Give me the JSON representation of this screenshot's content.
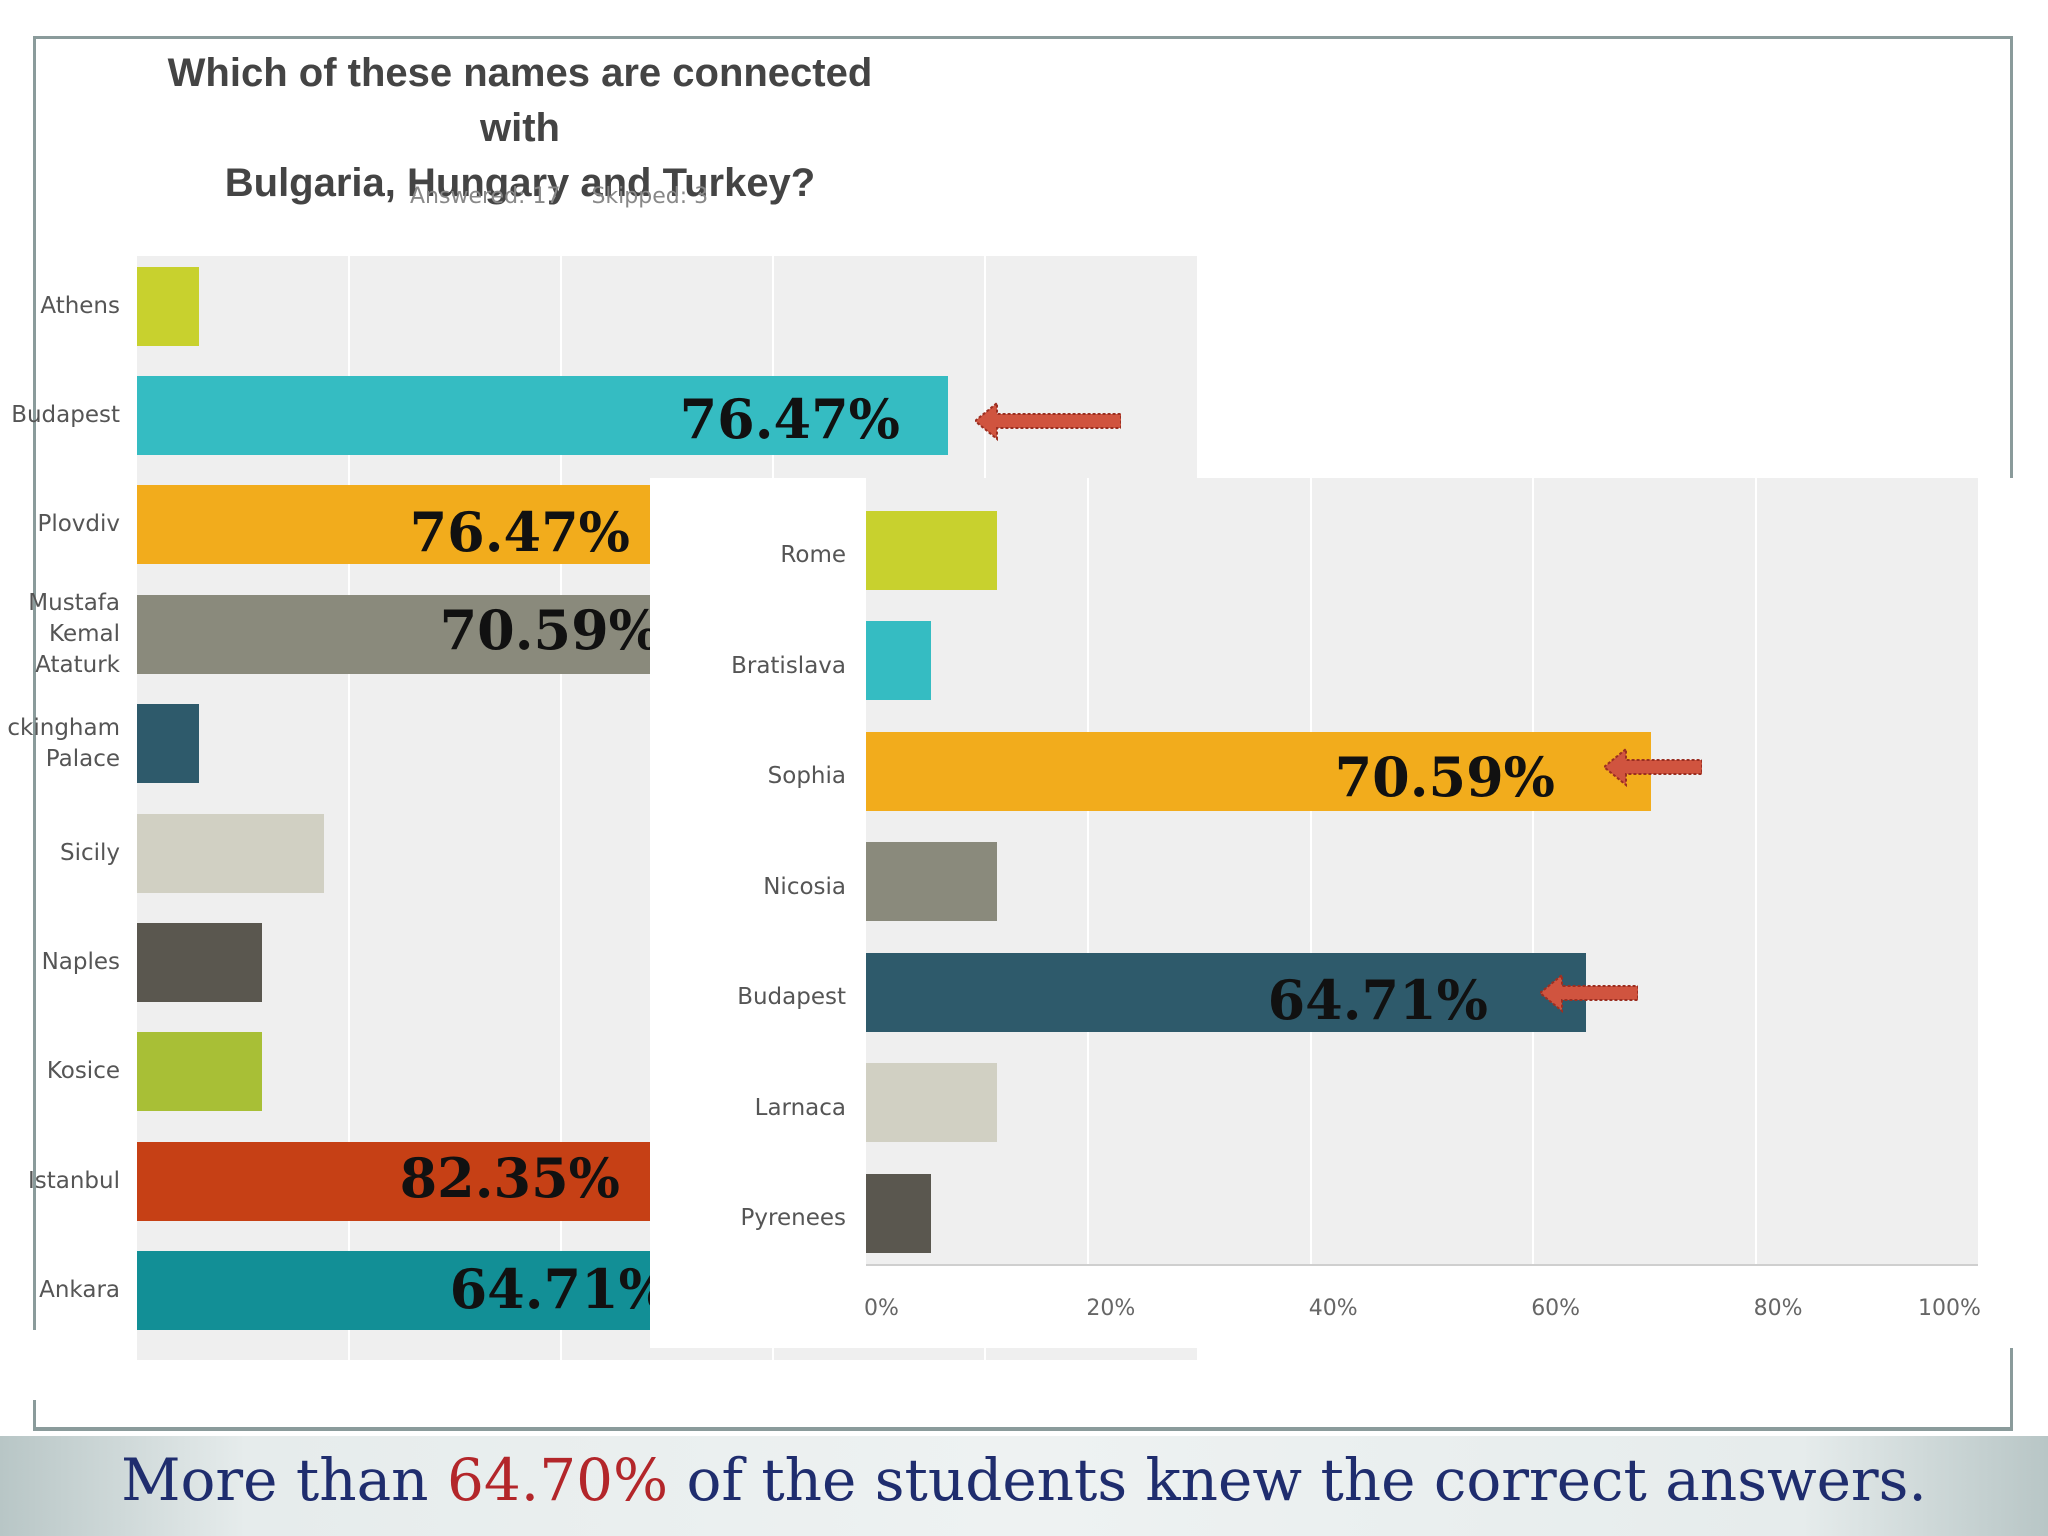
{
  "caption": {
    "prefix": "More than ",
    "highlight": "64.70%",
    "suffix": " of the students knew the correct answers.",
    "text_color": "#1f2d6e",
    "highlight_color": "#b3262a"
  },
  "survey": {
    "title_line1": "Which of these names are connected with",
    "title_line2": "Bulgaria, Hungary and Turkey?",
    "answered": "Answered: 17",
    "skipped": "Skipped: 3"
  },
  "chart_data": [
    {
      "type": "bar",
      "orientation": "horizontal",
      "title": "Which of these names are connected with Bulgaria, Hungary and Turkey?",
      "categories": [
        "Athens",
        "Budapest",
        "Plovdiv",
        "Mustafa\nKemal\nAtaturk",
        "ckingham\nPalace",
        "Sicily",
        "Naples",
        "Kosice",
        "Istanbul",
        "Ankara"
      ],
      "values": [
        5.88,
        76.47,
        76.47,
        70.59,
        5.88,
        17.65,
        11.76,
        11.76,
        82.35,
        64.71
      ],
      "colors": [
        "#c8d12e",
        "#35bcc2",
        "#f2ac1c",
        "#8a8a7c",
        "#2e5a6b",
        "#d1d0c3",
        "#5a574f",
        "#a8bf36",
        "#c64015",
        "#128f96"
      ],
      "annotations": [
        {
          "category": "Budapest",
          "label": "76.47%"
        },
        {
          "category": "Plovdiv",
          "label": "76.47%"
        },
        {
          "category": "Mustafa\nKemal\nAtaturk",
          "label": "70.59%"
        },
        {
          "category": "Istanbul",
          "label": "82.35%"
        },
        {
          "category": "Ankara",
          "label": "64.71%"
        }
      ],
      "xlim": [
        0,
        100
      ],
      "grid": true
    },
    {
      "type": "bar",
      "orientation": "horizontal",
      "categories": [
        "Rome",
        "Bratislava",
        "Sophia",
        "Nicosia",
        "Budapest",
        "Larnaca",
        "Pyrenees"
      ],
      "values": [
        11.76,
        5.88,
        70.59,
        11.76,
        64.71,
        11.76,
        5.88
      ],
      "colors": [
        "#c8d12e",
        "#35bcc2",
        "#f2ac1c",
        "#8a8a7c",
        "#2e5a6b",
        "#d1d0c3",
        "#5a574f"
      ],
      "annotations": [
        {
          "category": "Sophia",
          "label": "70.59%"
        },
        {
          "category": "Budapest",
          "label": "64.71%"
        }
      ],
      "xlim": [
        0,
        100
      ],
      "xticks": [
        "0%",
        "20%",
        "40%",
        "60%",
        "80%",
        "100%"
      ],
      "grid": true
    }
  ],
  "arrow_color": "#d0543f"
}
